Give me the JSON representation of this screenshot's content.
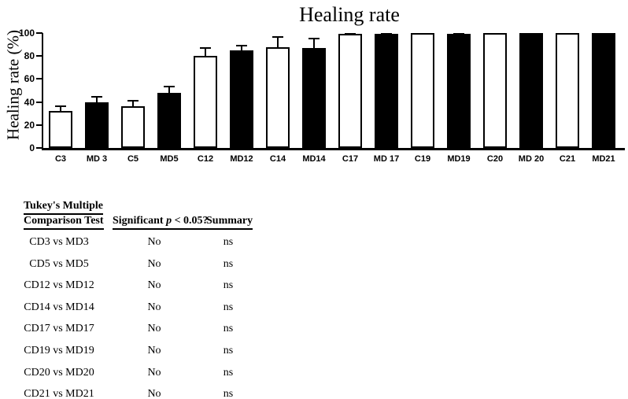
{
  "chart_data": {
    "type": "bar",
    "title": "Healing rate",
    "ylabel": "Healing rate (%)",
    "xlabel": "",
    "ylim": [
      0,
      100
    ],
    "yticks": [
      "0",
      "20",
      "40",
      "60",
      "80",
      "100"
    ],
    "grid": false,
    "legend": "none",
    "categories": [
      "C3",
      "MD 3",
      "C5",
      "MD5",
      "C12",
      "MD12",
      "C14",
      "MD14",
      "C17",
      "MD 17",
      "C19",
      "MD19",
      "C20",
      "MD 20",
      "C21",
      "MD21"
    ],
    "values": [
      32,
      40,
      36,
      48,
      80,
      85,
      88,
      87,
      99,
      99,
      100,
      99,
      100,
      100,
      100,
      100
    ],
    "errors_plus": [
      5,
      5,
      6,
      6,
      8,
      5,
      9,
      9,
      1,
      1,
      0,
      1,
      0,
      0,
      0,
      0
    ],
    "bar_fills": [
      "white",
      "black",
      "white",
      "black",
      "white",
      "black",
      "white",
      "black",
      "white",
      "black",
      "white",
      "black",
      "white",
      "black",
      "white",
      "black"
    ],
    "bar_color_black": "#000000",
    "bar_color_white": "#ffffff",
    "axis_color": "#000000"
  },
  "table": {
    "headers": {
      "test_line1": "Tukey's Multiple",
      "test_line2": "Comparison Test",
      "significant_pre": "Significant ",
      "significant_p": "p",
      "significant_post": " < 0.05?",
      "summary": "Summary"
    },
    "rows": [
      {
        "comparison": "CD3 vs MD3",
        "significant": "No",
        "summary": "ns"
      },
      {
        "comparison": "CD5 vs MD5",
        "significant": "No",
        "summary": "ns"
      },
      {
        "comparison": "CD12 vs MD12",
        "significant": "No",
        "summary": "ns"
      },
      {
        "comparison": "CD14 vs MD14",
        "significant": "No",
        "summary": "ns"
      },
      {
        "comparison": "CD17 vs MD17",
        "significant": "No",
        "summary": "ns"
      },
      {
        "comparison": "CD19 vs MD19",
        "significant": "No",
        "summary": "ns"
      },
      {
        "comparison": "CD20 vs MD20",
        "significant": "No",
        "summary": "ns"
      },
      {
        "comparison": "CD21 vs MD21",
        "significant": "No",
        "summary": "ns"
      }
    ]
  }
}
